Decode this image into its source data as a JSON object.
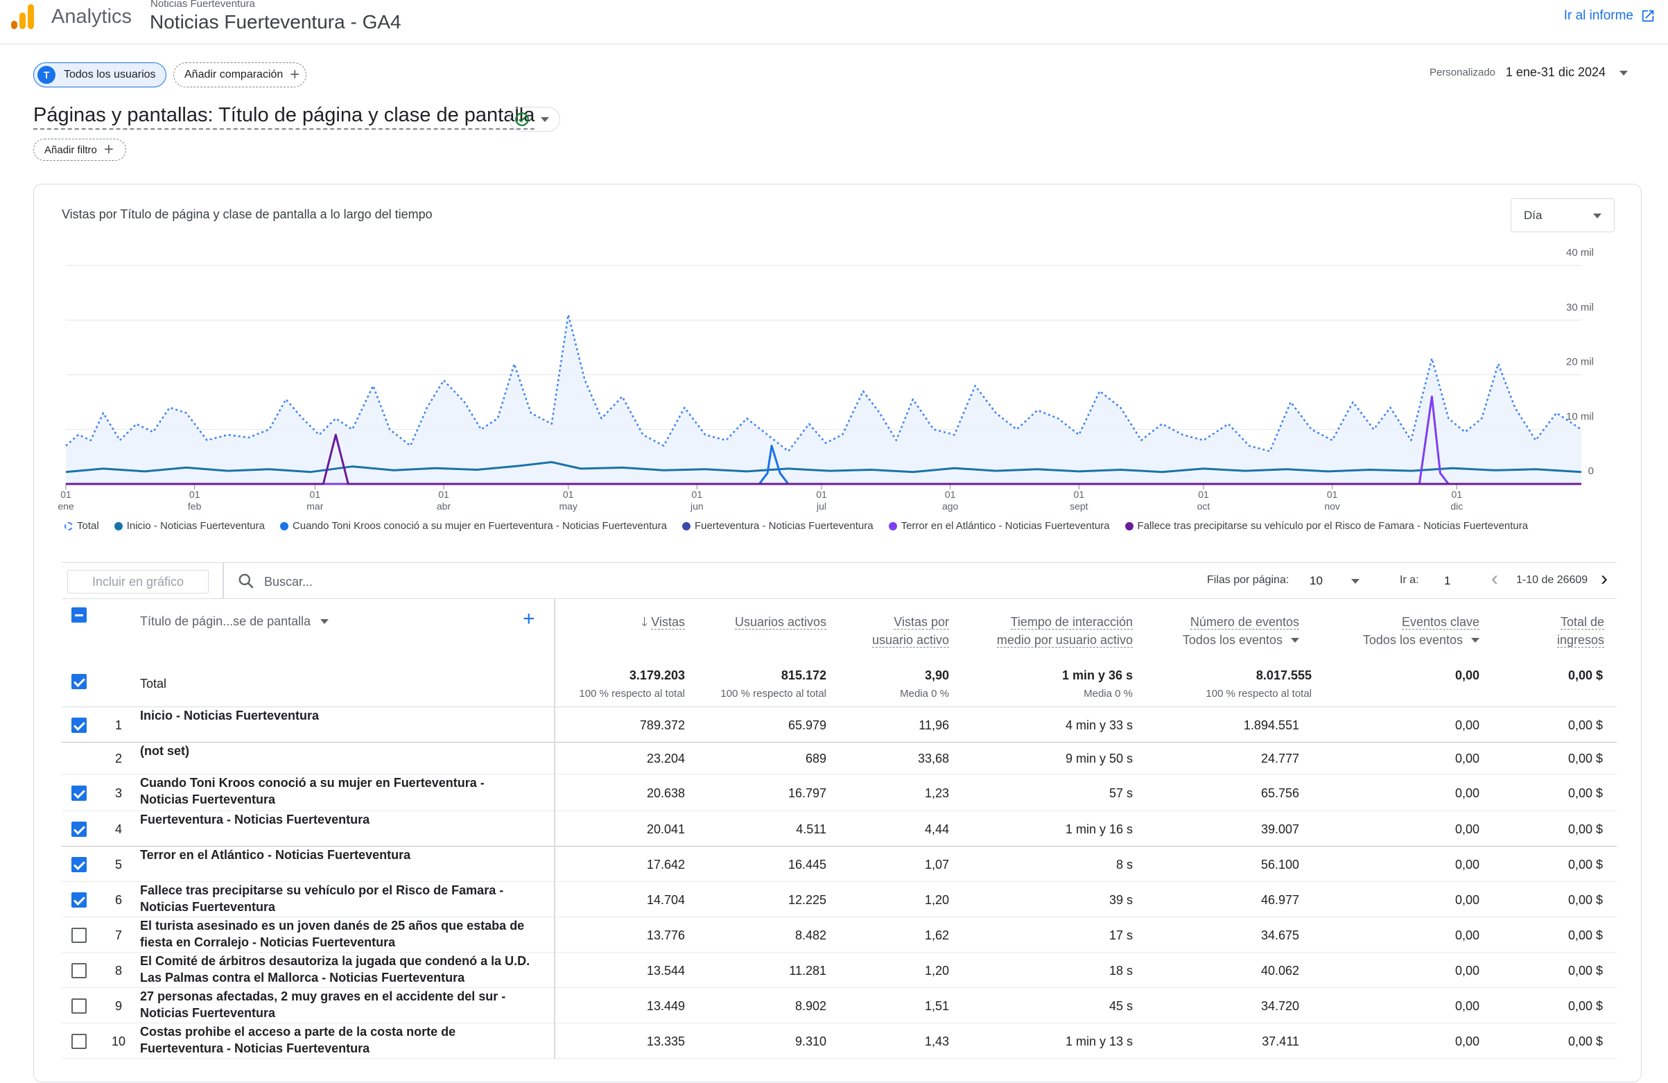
{
  "header": {
    "app_name": "Analytics",
    "account_name": "Noticias Fuerteventura",
    "property_name": "Noticias Fuerteventura - GA4",
    "goto_report": "Ir al informe"
  },
  "comparison": {
    "segment_initial": "T",
    "segment_label": "Todos los usuarios",
    "add_comparison": "Añadir comparación"
  },
  "date": {
    "label": "Personalizado",
    "range": "1 ene-31 dic 2024"
  },
  "report": {
    "title": "Páginas y pantallas: Título de página y clase de pantalla",
    "add_filter": "Añadir filtro"
  },
  "chart": {
    "title": "Vistas por Título de página y clase de pantalla a lo largo del tiempo",
    "granularity": "Día"
  },
  "chart_data": {
    "type": "line",
    "y_ticks": [
      "0",
      "10 mil",
      "20 mil",
      "30 mil",
      "40 mil"
    ],
    "ylim": [
      0,
      40000
    ],
    "x_ticks": [
      {
        "day": "01",
        "month": "ene"
      },
      {
        "day": "01",
        "month": "feb"
      },
      {
        "day": "01",
        "month": "mar"
      },
      {
        "day": "01",
        "month": "abr"
      },
      {
        "day": "01",
        "month": "may"
      },
      {
        "day": "01",
        "month": "jun"
      },
      {
        "day": "01",
        "month": "jul"
      },
      {
        "day": "01",
        "month": "ago"
      },
      {
        "day": "01",
        "month": "sept"
      },
      {
        "day": "01",
        "month": "oct"
      },
      {
        "day": "01",
        "month": "nov"
      },
      {
        "day": "01",
        "month": "dic"
      }
    ],
    "grid": true,
    "legend_position": "bottom",
    "series": [
      {
        "name": "Total",
        "color": "#4285f4",
        "style": "dashed-area",
        "points": [
          [
            1,
            7000
          ],
          [
            4,
            9000
          ],
          [
            7,
            8000
          ],
          [
            10,
            13000
          ],
          [
            14,
            8000
          ],
          [
            18,
            11000
          ],
          [
            22,
            9500
          ],
          [
            26,
            14000
          ],
          [
            30,
            13000
          ],
          [
            35,
            8000
          ],
          [
            40,
            9000
          ],
          [
            45,
            8500
          ],
          [
            50,
            10000
          ],
          [
            54,
            15500
          ],
          [
            58,
            12000
          ],
          [
            62,
            9000
          ],
          [
            66,
            12000
          ],
          [
            70,
            10000
          ],
          [
            75,
            18000
          ],
          [
            79,
            10000
          ],
          [
            84,
            7000
          ],
          [
            88,
            14000
          ],
          [
            92,
            19000
          ],
          [
            97,
            15000
          ],
          [
            101,
            10000
          ],
          [
            105,
            12000
          ],
          [
            109,
            22000
          ],
          [
            113,
            13000
          ],
          [
            118,
            11000
          ],
          [
            122,
            31000
          ],
          [
            126,
            19000
          ],
          [
            130,
            12000
          ],
          [
            135,
            16000
          ],
          [
            140,
            9000
          ],
          [
            145,
            7000
          ],
          [
            150,
            14000
          ],
          [
            155,
            9000
          ],
          [
            160,
            8000
          ],
          [
            165,
            12000
          ],
          [
            170,
            9000
          ],
          [
            175,
            6000
          ],
          [
            180,
            11000
          ],
          [
            184,
            7500
          ],
          [
            188,
            9000
          ],
          [
            193,
            17000
          ],
          [
            197,
            13000
          ],
          [
            201,
            8000
          ],
          [
            205,
            15500
          ],
          [
            210,
            10000
          ],
          [
            215,
            9000
          ],
          [
            220,
            18000
          ],
          [
            225,
            13000
          ],
          [
            230,
            10000
          ],
          [
            235,
            13500
          ],
          [
            240,
            12000
          ],
          [
            245,
            9000
          ],
          [
            250,
            17000
          ],
          [
            255,
            14000
          ],
          [
            260,
            8000
          ],
          [
            265,
            11000
          ],
          [
            270,
            9000
          ],
          [
            275,
            8000
          ],
          [
            281,
            11000
          ],
          [
            286,
            7000
          ],
          [
            291,
            6000
          ],
          [
            296,
            15000
          ],
          [
            301,
            10000
          ],
          [
            306,
            8000
          ],
          [
            311,
            15000
          ],
          [
            316,
            10000
          ],
          [
            320,
            14000
          ],
          [
            325,
            8000
          ],
          [
            330,
            23000
          ],
          [
            334,
            12000
          ],
          [
            338,
            9500
          ],
          [
            342,
            12000
          ],
          [
            346,
            22000
          ],
          [
            350,
            14000
          ],
          [
            355,
            8000
          ],
          [
            360,
            13000
          ],
          [
            366,
            10000
          ]
        ]
      },
      {
        "name": "Inicio - Noticias Fuerteventura",
        "color": "#1a73a8",
        "style": "solid",
        "points": [
          [
            1,
            2200
          ],
          [
            10,
            2800
          ],
          [
            20,
            2300
          ],
          [
            30,
            3000
          ],
          [
            40,
            2400
          ],
          [
            50,
            2700
          ],
          [
            60,
            2200
          ],
          [
            70,
            3200
          ],
          [
            80,
            2500
          ],
          [
            90,
            2900
          ],
          [
            100,
            2600
          ],
          [
            110,
            3300
          ],
          [
            118,
            4000
          ],
          [
            125,
            2800
          ],
          [
            135,
            3000
          ],
          [
            145,
            2500
          ],
          [
            155,
            2700
          ],
          [
            165,
            2300
          ],
          [
            175,
            2800
          ],
          [
            185,
            2400
          ],
          [
            195,
            2600
          ],
          [
            205,
            2200
          ],
          [
            215,
            2900
          ],
          [
            225,
            2400
          ],
          [
            235,
            2700
          ],
          [
            245,
            2300
          ],
          [
            255,
            2600
          ],
          [
            265,
            2200
          ],
          [
            275,
            2800
          ],
          [
            285,
            2400
          ],
          [
            295,
            2700
          ],
          [
            305,
            2300
          ],
          [
            315,
            2600
          ],
          [
            325,
            2400
          ],
          [
            335,
            2900
          ],
          [
            345,
            2500
          ],
          [
            355,
            2700
          ],
          [
            366,
            2200
          ]
        ]
      },
      {
        "name": "Cuando Toni Kroos conoció a su mujer en Fuerteventura - Noticias Fuerteventura",
        "color": "#1a73e8",
        "style": "solid",
        "points": [
          [
            1,
            0
          ],
          [
            168,
            0
          ],
          [
            170,
            2000
          ],
          [
            171,
            7000
          ],
          [
            173,
            2000
          ],
          [
            175,
            0
          ],
          [
            366,
            0
          ]
        ]
      },
      {
        "name": "Fuerteventura - Noticias Fuerteventura",
        "color": "#3949ab",
        "style": "solid",
        "points": [
          [
            1,
            0
          ],
          [
            366,
            0
          ]
        ]
      },
      {
        "name": "Terror en el Atlántico - Noticias Fuerteventura",
        "color": "#7e3ff2",
        "style": "solid",
        "points": [
          [
            1,
            0
          ],
          [
            327,
            0
          ],
          [
            330,
            16000
          ],
          [
            332,
            2000
          ],
          [
            334,
            0
          ],
          [
            366,
            0
          ]
        ]
      },
      {
        "name": "Fallece tras precipitarse su vehículo por el Risco de Famara - Noticias Fuerteventura",
        "color": "#6a1b9a",
        "style": "solid",
        "points": [
          [
            1,
            0
          ],
          [
            63,
            0
          ],
          [
            66,
            9000
          ],
          [
            69,
            0
          ],
          [
            366,
            0
          ]
        ]
      }
    ]
  },
  "toolbar": {
    "include_chart": "Incluir en gráfico",
    "search_placeholder": "Buscar...",
    "rows_label": "Filas por página:",
    "rows_value": "10",
    "goto_label": "Ir a:",
    "goto_value": "1",
    "page_range": "1-10 de 26609"
  },
  "table": {
    "dimension_header": "Título de págin...se de pantalla",
    "columns": [
      {
        "key": "vistas",
        "label": "Vistas",
        "sorted": true
      },
      {
        "key": "usuarios",
        "label": "Usuarios activos"
      },
      {
        "key": "vpu",
        "label_l1": "Vistas por",
        "label_l2": "usuario activo"
      },
      {
        "key": "tiempo",
        "label_l1": "Tiempo de interacción",
        "label_l2": "medio por usuario activo"
      },
      {
        "key": "eventos",
        "label": "Número de eventos",
        "sub": "Todos los eventos"
      },
      {
        "key": "clave",
        "label": "Eventos clave",
        "sub": "Todos los eventos"
      },
      {
        "key": "ingresos",
        "label_l1": "Total de",
        "label_l2": "ingresos"
      }
    ],
    "total": {
      "label": "Total",
      "vistas": "3.179.203",
      "vistas_sub": "100 % respecto al total",
      "usuarios": "815.172",
      "usuarios_sub": "100 % respecto al total",
      "vpu": "3,90",
      "vpu_sub": "Media 0 %",
      "tiempo": "1 min y 36 s",
      "tiempo_sub": "Media 0 %",
      "eventos": "8.017.555",
      "eventos_sub": "100 % respecto al total",
      "clave": "0,00",
      "ingresos": "0,00 $"
    },
    "rows": [
      {
        "idx": "1",
        "checked": true,
        "title": "Inicio - Noticias Fuerteventura",
        "vistas": "789.372",
        "usuarios": "65.979",
        "vpu": "11,96",
        "tiempo": "4 min y 33 s",
        "eventos": "1.894.551",
        "clave": "0,00",
        "ingresos": "0,00 $"
      },
      {
        "idx": "2",
        "checked": null,
        "title": "(not set)",
        "vistas": "23.204",
        "usuarios": "689",
        "vpu": "33,68",
        "tiempo": "9 min y 50 s",
        "eventos": "24.777",
        "clave": "0,00",
        "ingresos": "0,00 $"
      },
      {
        "idx": "3",
        "checked": true,
        "title": "Cuando Toni Kroos conoció a su mujer en Fuerteventura - Noticias Fuerteventura",
        "vistas": "20.638",
        "usuarios": "16.797",
        "vpu": "1,23",
        "tiempo": "57 s",
        "eventos": "65.756",
        "clave": "0,00",
        "ingresos": "0,00 $"
      },
      {
        "idx": "4",
        "checked": true,
        "title": "Fuerteventura - Noticias Fuerteventura",
        "vistas": "20.041",
        "usuarios": "4.511",
        "vpu": "4,44",
        "tiempo": "1 min y 16 s",
        "eventos": "39.007",
        "clave": "0,00",
        "ingresos": "0,00 $"
      },
      {
        "idx": "5",
        "checked": true,
        "title": "Terror en el Atlántico - Noticias Fuerteventura",
        "vistas": "17.642",
        "usuarios": "16.445",
        "vpu": "1,07",
        "tiempo": "8 s",
        "eventos": "56.100",
        "clave": "0,00",
        "ingresos": "0,00 $"
      },
      {
        "idx": "6",
        "checked": true,
        "title": "Fallece tras precipitarse su vehículo por el Risco de Famara - Noticias Fuerteventura",
        "vistas": "14.704",
        "usuarios": "12.225",
        "vpu": "1,20",
        "tiempo": "39 s",
        "eventos": "46.977",
        "clave": "0,00",
        "ingresos": "0,00 $"
      },
      {
        "idx": "7",
        "checked": false,
        "title": "El turista asesinado es un joven danés de 25 años que estaba de fiesta en Corralejo - Noticias Fuerteventura",
        "vistas": "13.776",
        "usuarios": "8.482",
        "vpu": "1,62",
        "tiempo": "17 s",
        "eventos": "34.675",
        "clave": "0,00",
        "ingresos": "0,00 $"
      },
      {
        "idx": "8",
        "checked": false,
        "title": "El Comité de árbitros desautoriza la jugada que condenó a la U.D. Las Palmas contra el Mallorca - Noticias Fuerteventura",
        "vistas": "13.544",
        "usuarios": "11.281",
        "vpu": "1,20",
        "tiempo": "18 s",
        "eventos": "40.062",
        "clave": "0,00",
        "ingresos": "0,00 $"
      },
      {
        "idx": "9",
        "checked": false,
        "title": "27 personas afectadas, 2 muy graves en el accidente del sur - Noticias Fuerteventura",
        "vistas": "13.449",
        "usuarios": "8.902",
        "vpu": "1,51",
        "tiempo": "45 s",
        "eventos": "34.720",
        "clave": "0,00",
        "ingresos": "0,00 $"
      },
      {
        "idx": "10",
        "checked": false,
        "title": "Costas prohibe el acceso a parte de la costa norte de Fuerteventura - Noticias Fuerteventura",
        "vistas": "13.335",
        "usuarios": "9.310",
        "vpu": "1,43",
        "tiempo": "1 min y 13 s",
        "eventos": "37.411",
        "clave": "0,00",
        "ingresos": "0,00 $"
      }
    ]
  }
}
